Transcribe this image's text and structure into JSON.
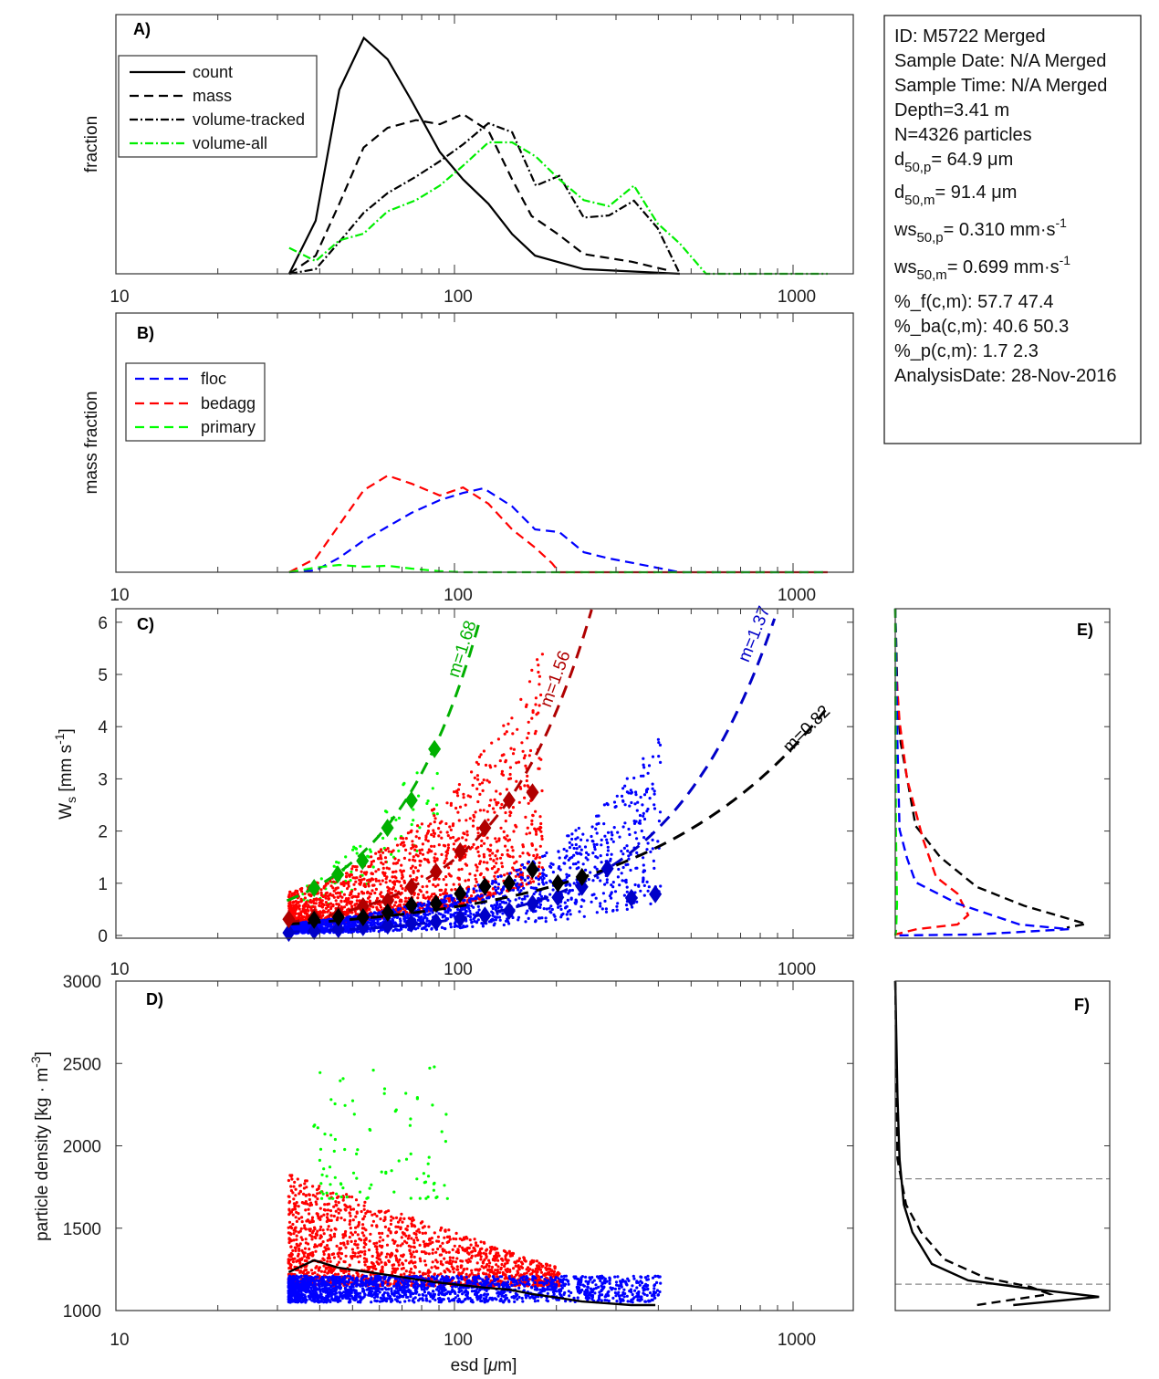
{
  "info_box": {
    "lines": [
      {
        "text": "ID: M5722 Merged"
      },
      {
        "text": "Sample Date: N/A Merged"
      },
      {
        "text": "Sample Time: N/A Merged"
      },
      {
        "text": "Depth=3.41 m"
      },
      {
        "text": "N=4326 particles"
      },
      {
        "base": "d",
        "sub": "50,p",
        "rest": "=  64.9 μm"
      },
      {
        "base": "d",
        "sub": "50,m",
        "rest": "=  91.4 μm"
      },
      {
        "base": "ws",
        "sub": "50,p",
        "rest": "= 0.310 mm·s",
        "sup": "-1"
      },
      {
        "base": "ws",
        "sub": "50,m",
        "rest": "= 0.699 mm·s",
        "sup": "-1"
      },
      {
        "text": "%_f(c,m): 57.7 47.4"
      },
      {
        "text": "%_ba(c,m): 40.6 50.3"
      },
      {
        "text": "%_p(c,m): 1.7 2.3"
      },
      {
        "text": "AnalysisDate: 28-Nov-2016"
      }
    ]
  },
  "colors": {
    "floc": "#0000ff",
    "bedagg": "#ff0000",
    "primary": "#00ff00",
    "floc_fit": "#0000c8",
    "bedagg_fit": "#b00000",
    "primary_fit": "#00b000",
    "all": "#000000",
    "volume_all": "#00ee00"
  },
  "chart_data": [
    {
      "panel": "A)",
      "type": "line",
      "ylabel": "fraction",
      "xscale": "log",
      "xlim": [
        10,
        1500
      ],
      "ylim": [
        0,
        1
      ],
      "x_ticks": [
        "10",
        "100",
        "1000"
      ],
      "legend": "top-left",
      "series": [
        {
          "name": "count",
          "style": "solid",
          "color": "#000000",
          "x": [
            32.5,
            38.9,
            45.7,
            54,
            63.5,
            74.6,
            90.5,
            106,
            126,
            148,
            173,
            241,
            463
          ],
          "y": [
            0,
            0.205,
            0.71,
            0.91,
            0.827,
            0.669,
            0.47,
            0.364,
            0.27,
            0.153,
            0.07,
            0.018,
            0
          ]
        },
        {
          "name": "mass",
          "style": "dashed",
          "color": "#000000",
          "x": [
            32.5,
            38.9,
            45.7,
            53.9,
            63.4,
            77,
            90.5,
            106,
            126,
            148,
            169,
            202,
            241,
            333,
            432
          ],
          "y": [
            0,
            0.07,
            0.27,
            0.487,
            0.563,
            0.593,
            0.577,
            0.616,
            0.552,
            0.364,
            0.223,
            0.153,
            0.076,
            0.047,
            0.012
          ]
        },
        {
          "name": "volume-tracked",
          "style": "dashdot",
          "color": "#000000",
          "x": [
            32.5,
            38.9,
            45.7,
            53.9,
            63.4,
            77,
            90.5,
            106,
            126,
            148,
            174,
            204,
            241,
            286,
            339,
            398,
            463
          ],
          "y": [
            0,
            0.018,
            0.123,
            0.235,
            0.311,
            0.375,
            0.434,
            0.499,
            0.581,
            0.546,
            0.34,
            0.378,
            0.217,
            0.225,
            0.282,
            0.176,
            0
          ]
        },
        {
          "name": "volume-all",
          "style": "dashdot",
          "color": "#00ee00",
          "x": [
            32.5,
            38.9,
            45.7,
            53.9,
            63.4,
            77,
            90.5,
            106,
            126,
            148,
            174,
            204,
            241,
            286,
            339,
            398,
            463,
            553,
            700,
            900,
            1100,
            1265
          ],
          "y": [
            0.1,
            0.049,
            0.129,
            0.155,
            0.241,
            0.284,
            0.34,
            0.417,
            0.507,
            0.507,
            0.452,
            0.364,
            0.284,
            0.261,
            0.34,
            0.194,
            0.117,
            0,
            0,
            0,
            0,
            0
          ]
        }
      ]
    },
    {
      "panel": "B)",
      "type": "line",
      "ylabel": "mass fraction",
      "xscale": "log",
      "xlim": [
        10,
        1500
      ],
      "ylim": [
        0,
        1
      ],
      "x_ticks": [
        "10",
        "100",
        "1000"
      ],
      "legend": "top-left",
      "series": [
        {
          "name": "floc",
          "style": "dashed",
          "color": "#0000ff",
          "x": [
            32.5,
            38.9,
            45.7,
            54,
            63.5,
            74.6,
            90.5,
            106,
            122,
            148,
            173,
            204,
            241,
            286,
            339,
            463,
            800,
            1265
          ],
          "y": [
            0,
            0.007,
            0.056,
            0.123,
            0.176,
            0.229,
            0.278,
            0.306,
            0.324,
            0.254,
            0.165,
            0.155,
            0.077,
            0.053,
            0.035,
            0,
            0,
            0
          ]
        },
        {
          "name": "bedagg",
          "style": "dashed",
          "color": "#ff0000",
          "x": [
            32.5,
            38.9,
            45.7,
            54,
            63.5,
            74.6,
            90.5,
            106,
            126,
            148,
            173,
            194,
            204,
            400,
            800,
            1265
          ],
          "y": [
            0,
            0.053,
            0.183,
            0.317,
            0.373,
            0.342,
            0.296,
            0.327,
            0.264,
            0.165,
            0.095,
            0.035,
            0,
            0,
            0,
            0
          ]
        },
        {
          "name": "primary",
          "style": "dashed",
          "color": "#00ff00",
          "x": [
            32.5,
            38.9,
            45.7,
            54,
            63.5,
            74.6,
            90.5,
            106,
            200,
            400,
            800,
            1265
          ],
          "y": [
            0,
            0.018,
            0.028,
            0.021,
            0.025,
            0.014,
            0.004,
            0,
            0,
            0,
            0,
            0
          ]
        }
      ]
    },
    {
      "panel": "C)",
      "type": "scatter",
      "ylabel": "W",
      "ylabel_sub": "s",
      "ylabel_rest": " [mm s",
      "ylabel_sup": "-1",
      "ylabel_end": "]",
      "xscale": "log",
      "xlim": [
        10,
        1500
      ],
      "ylim": [
        0,
        6.26
      ],
      "x_ticks": [
        "10",
        "100",
        "1000"
      ],
      "y_ticks": [
        0,
        1,
        2,
        3,
        4,
        5,
        6
      ],
      "bin_esd": [
        32.4,
        38.5,
        45.4,
        53.7,
        63.5,
        74.6,
        88.2,
        104,
        123,
        145,
        170,
        202,
        238,
        283,
        333,
        392
      ],
      "medians": {
        "primary": {
          "x": [
            38.5,
            45.2,
            53.5,
            63.4,
            74.6,
            87.3
          ],
          "y": [
            0.91,
            1.17,
            1.43,
            2.06,
            2.59,
            3.57
          ]
        },
        "bedagg": {
          "x": [
            32.4,
            38.5,
            45.4,
            53.7,
            63.5,
            74.6,
            88.2,
            104,
            123,
            145,
            170
          ],
          "y": [
            0.31,
            0.35,
            0.4,
            0.56,
            0.66,
            0.93,
            1.22,
            1.61,
            2.06,
            2.59,
            2.74
          ]
        },
        "all": {
          "x": [
            38.5,
            45.4,
            53.7,
            63.5,
            74.6,
            88.2,
            104,
            123,
            145,
            170,
            202,
            238
          ],
          "y": [
            0.3,
            0.35,
            0.35,
            0.44,
            0.58,
            0.61,
            0.8,
            0.94,
            1.0,
            1.26,
            1.0,
            1.12
          ]
        },
        "floc": {
          "x": [
            32.4,
            38.5,
            45.4,
            53.7,
            63.5,
            74.6,
            88.2,
            104,
            123,
            145,
            170,
            202,
            238,
            283,
            333,
            392
          ],
          "y": [
            0.05,
            0.09,
            0.12,
            0.16,
            0.19,
            0.23,
            0.26,
            0.33,
            0.38,
            0.47,
            0.61,
            0.73,
            0.93,
            1.28,
            0.72,
            0.79
          ]
        }
      },
      "fits": [
        {
          "label": "m=1.68",
          "group": "primary",
          "m": 1.68,
          "a": 0.001974,
          "xrange": [
            32,
            130
          ]
        },
        {
          "label": "m=1.56",
          "group": "bedagg",
          "m": 1.56,
          "a": 0.001105,
          "xrange": [
            32,
            260
          ]
        },
        {
          "label": "m=1.37",
          "group": "floc",
          "m": 1.37,
          "a": 0.00056,
          "xrange": [
            32,
            920
          ]
        },
        {
          "label": "m=0.82",
          "group": "all",
          "m": 0.82,
          "a": 0.0125,
          "xrange": [
            32,
            1250
          ]
        }
      ]
    },
    {
      "panel": "D)",
      "type": "scatter",
      "ylabel": "particle density [kg · m",
      "ylabel_sup": "-3",
      "ylabel_end": "]",
      "xlabel": "esd [",
      "xlabel_mu": "μ",
      "xlabel_end": "m]",
      "xscale": "log",
      "xlim": [
        10,
        1500
      ],
      "ylim": [
        1000,
        3000
      ],
      "x_ticks": [
        "10",
        "100",
        "1000"
      ],
      "y_ticks": [
        1000,
        1500,
        2000,
        2500,
        3000
      ],
      "median_density": {
        "x": [
          32.4,
          38.5,
          45.4,
          53.7,
          63.5,
          74.6,
          88.2,
          104,
          123,
          145,
          170,
          202,
          238,
          283,
          333,
          392
        ],
        "y": [
          1233,
          1305,
          1260,
          1238,
          1216,
          1194,
          1172,
          1155,
          1139,
          1127,
          1100,
          1078,
          1055,
          1044,
          1033,
          1033
        ]
      }
    },
    {
      "panel": "E)",
      "type": "line",
      "ylim": [
        0,
        6.26
      ],
      "xlim": [
        0,
        1
      ],
      "series": [
        {
          "group": "all",
          "color": "#000000",
          "style": "dashed",
          "x": [
            0,
            0.005,
            0.01,
            0.025,
            0.06,
            0.095,
            0.21,
            0.38,
            0.6,
            0.75,
            0.89,
            0.8
          ],
          "y": [
            6.26,
            5.5,
            4.5,
            3.7,
            2.9,
            2.1,
            1.5,
            0.93,
            0.57,
            0.39,
            0.22,
            0.15
          ]
        },
        {
          "group": "bedagg",
          "color": "#ff0000",
          "style": "dashed",
          "x": [
            0,
            0.005,
            0.02,
            0.055,
            0.13,
            0.19,
            0.29,
            0.34,
            0.29,
            0.1,
            0
          ],
          "y": [
            6.26,
            5.0,
            4.1,
            3.0,
            1.84,
            1.12,
            0.8,
            0.39,
            0.21,
            0.12,
            0.02
          ]
        },
        {
          "group": "floc",
          "color": "#0000ff",
          "style": "dashed",
          "x": [
            0,
            0.01,
            0.02,
            0.055,
            0.095,
            0.29,
            0.58,
            0.81,
            0.38,
            0
          ],
          "y": [
            6.26,
            3.66,
            2.03,
            1.48,
            1.02,
            0.61,
            0.21,
            0.12,
            0.02,
            0
          ]
        },
        {
          "group": "primary",
          "color": "#00ff00",
          "style": "dashed",
          "x": [
            0,
            0.003,
            0.008,
            0.004,
            0
          ],
          "y": [
            6.26,
            2,
            0.6,
            0.1,
            0
          ]
        }
      ]
    },
    {
      "panel": "F)",
      "type": "line",
      "ylim": [
        1000,
        3000
      ],
      "xlim": [
        0,
        1
      ],
      "reference_lines": [
        1800,
        1160
      ],
      "series": [
        {
          "style": "solid",
          "color": "#000000",
          "x": [
            0,
            0.01,
            0.02,
            0.04,
            0.08,
            0.17,
            0.34,
            0.63,
            0.95,
            0.55
          ],
          "y": [
            3000,
            2307,
            1920,
            1643,
            1476,
            1283,
            1183,
            1133,
            1083,
            1033
          ]
        },
        {
          "style": "dashed",
          "color": "#000000",
          "x": [
            0,
            0.01,
            0.05,
            0.12,
            0.23,
            0.42,
            0.63,
            0.72,
            0.38
          ],
          "y": [
            3000,
            1920,
            1643,
            1476,
            1310,
            1199,
            1144,
            1100,
            1033
          ]
        }
      ]
    }
  ]
}
